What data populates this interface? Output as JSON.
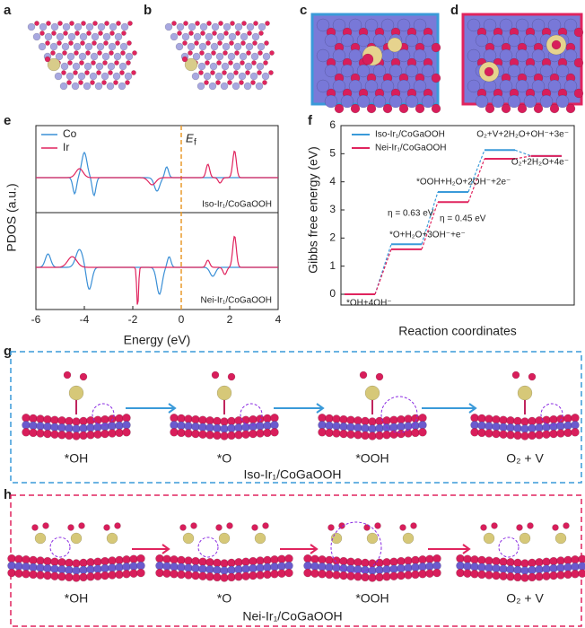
{
  "panel_labels": [
    "a",
    "b",
    "c",
    "d",
    "e",
    "f",
    "g",
    "h"
  ],
  "panel_e": {
    "xlabel": "Energy (eV)",
    "ylabel": "PDOS (a.u.)",
    "xlim": [
      -6,
      4
    ],
    "xticks": [
      -6,
      -4,
      -2,
      0,
      2,
      4
    ],
    "legend": [
      {
        "name": "Co",
        "color": "#3a8fd6"
      },
      {
        "name": "Ir",
        "color": "#e0245e"
      }
    ],
    "fermi_label": "E",
    "fermi_sub": "f",
    "upper_label": "Iso-Ir₁/CoGaOOH",
    "lower_label": "Nei-Ir₁/CoGaOOH"
  },
  "chart_data": {
    "type": "step",
    "xlabel": "Reaction coordinates",
    "ylabel": "Gibbs free energy (eV)",
    "categories": [
      "*OH+4OH⁻",
      "*O+H₂O+3OH⁻+e⁻",
      "*OOH+H₂O+2OH⁻+2e⁻",
      "O₂+V+2H₂O+OH⁻+3e⁻",
      "O₂+2H₂O+4e⁻"
    ],
    "series": [
      {
        "name": "Iso-Ir₁/CoGaOOH",
        "color": "#3a9ad9",
        "values": [
          0,
          1.78,
          3.64,
          5.13,
          4.92
        ]
      },
      {
        "name": "Nei-Ir₁/CoGaOOH",
        "color": "#e0245e",
        "values": [
          0,
          1.6,
          3.28,
          4.82,
          4.92
        ]
      }
    ],
    "ylim": [
      0,
      6
    ],
    "yticks": [
      0,
      1,
      2,
      3,
      4,
      5,
      6
    ],
    "legend": "upper left",
    "annotations": [
      {
        "text": "η = 0.63 eV",
        "color": "#3a9ad9"
      },
      {
        "text": "η = 0.45 eV",
        "color": "#e0245e"
      }
    ]
  },
  "panel_g": {
    "steps": [
      "*OH",
      "*O",
      "*OOH",
      "O₂ + V"
    ],
    "caption": "Iso-Ir₁/CoGaOOH",
    "color": "#3a9ad9"
  },
  "panel_h": {
    "steps": [
      "*OH",
      "*O",
      "*OOH",
      "O₂ + V"
    ],
    "caption": "Nei-Ir₁/CoGaOOH",
    "color": "#e0245e"
  }
}
